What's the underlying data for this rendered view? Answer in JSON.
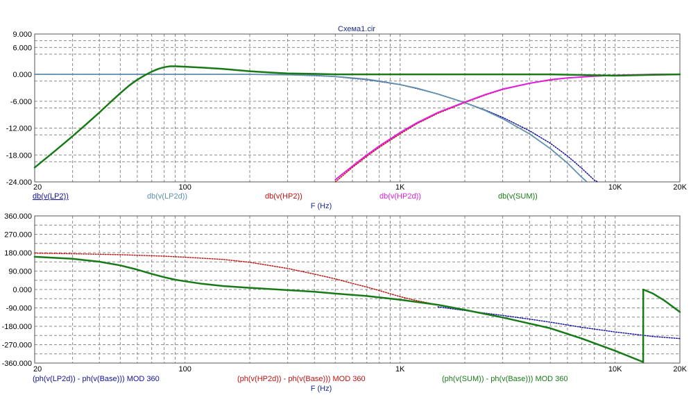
{
  "window": {
    "title": "Схема1.cir"
  },
  "chart_data": [
    {
      "type": "line",
      "xscale": "log",
      "xlim": [
        20,
        20000
      ],
      "ylim": [
        -24,
        9
      ],
      "grid": true,
      "xlabel": "F (Hz)",
      "ylabel": "",
      "x_tick_labels": [
        {
          "v": 20,
          "label": "20"
        },
        {
          "v": 100,
          "label": "100"
        },
        {
          "v": 1000,
          "label": "1K"
        },
        {
          "v": 10000,
          "label": "10K"
        },
        {
          "v": 20000,
          "label": "20K"
        }
      ],
      "y_tick_labels": [
        {
          "v": 9,
          "label": "9.000"
        },
        {
          "v": 6,
          "label": "6.000"
        },
        {
          "v": 0,
          "label": "0.000"
        },
        {
          "v": -6,
          "label": "-6.000"
        },
        {
          "v": -12,
          "label": "-12.000"
        },
        {
          "v": -18,
          "label": "-18.000"
        },
        {
          "v": -24,
          "label": "-24.000"
        }
      ],
      "series": [
        {
          "name": "db(v(LP2))",
          "color": "#1010a0",
          "style": "dotted",
          "width": 1.5,
          "points": [
            [
              20,
              0
            ],
            [
              100,
              0
            ],
            [
              200,
              0
            ],
            [
              300,
              -0.1
            ],
            [
              400,
              -0.3
            ],
            [
              500,
              -0.5
            ],
            [
              600,
              -0.9
            ],
            [
              700,
              -1.2
            ],
            [
              800,
              -1.6
            ],
            [
              1000,
              -2.3
            ],
            [
              1200,
              -3.2
            ],
            [
              1500,
              -4.4
            ],
            [
              2000,
              -6.3
            ],
            [
              2500,
              -8.0
            ],
            [
              3000,
              -9.6
            ],
            [
              4000,
              -12.6
            ],
            [
              5000,
              -15.4
            ],
            [
              6000,
              -18.2
            ],
            [
              7000,
              -21
            ],
            [
              8000,
              -23.6
            ],
            [
              8300,
              -24
            ]
          ]
        },
        {
          "name": "db(v(LP2d))",
          "color": "#5f8fab",
          "style": "solid",
          "width": 1.8,
          "points": [
            [
              20,
              0
            ],
            [
              100,
              0
            ],
            [
              200,
              0
            ],
            [
              300,
              -0.1
            ],
            [
              400,
              -0.2
            ],
            [
              500,
              -0.5
            ],
            [
              600,
              -0.8
            ],
            [
              700,
              -1.1
            ],
            [
              800,
              -1.5
            ],
            [
              1000,
              -2.3
            ],
            [
              1200,
              -3.1
            ],
            [
              1500,
              -4.4
            ],
            [
              2000,
              -6.3
            ],
            [
              2500,
              -8.1
            ],
            [
              3000,
              -9.9
            ],
            [
              4000,
              -13.3
            ],
            [
              5000,
              -16.6
            ],
            [
              6000,
              -19.8
            ],
            [
              7000,
              -23
            ],
            [
              7400,
              -24
            ]
          ]
        },
        {
          "name": "db(v(HP2))",
          "color": "#c01010",
          "style": "dotted",
          "width": 1.5,
          "points": [
            [
              500,
              -24
            ],
            [
              600,
              -20.8
            ],
            [
              700,
              -18.3
            ],
            [
              800,
              -16.3
            ],
            [
              1000,
              -13.3
            ],
            [
              1200,
              -11
            ],
            [
              1500,
              -8.7
            ],
            [
              2000,
              -6.3
            ],
            [
              2500,
              -4.6
            ],
            [
              3000,
              -3.4
            ],
            [
              4000,
              -2
            ],
            [
              5000,
              -1.3
            ],
            [
              6000,
              -0.8
            ],
            [
              8000,
              -0.4
            ],
            [
              10000,
              -0.2
            ],
            [
              15000,
              0
            ],
            [
              20000,
              0
            ]
          ]
        },
        {
          "name": "db(v(HP2d))",
          "color": "#e020e0",
          "style": "solid",
          "width": 2,
          "points": [
            [
              500,
              -23.5
            ],
            [
              600,
              -20.5
            ],
            [
              700,
              -18
            ],
            [
              800,
              -16
            ],
            [
              1000,
              -13
            ],
            [
              1200,
              -10.8
            ],
            [
              1500,
              -8.5
            ],
            [
              2000,
              -6.2
            ],
            [
              2500,
              -4.5
            ],
            [
              3000,
              -3.3
            ],
            [
              4000,
              -2
            ],
            [
              5000,
              -1.2
            ],
            [
              6000,
              -0.8
            ],
            [
              8000,
              -0.4
            ],
            [
              10000,
              -0.2
            ],
            [
              15000,
              0
            ],
            [
              20000,
              0
            ]
          ]
        },
        {
          "name": "db(v(SUM))",
          "color": "#177a17",
          "style": "solid",
          "width": 2.5,
          "points": [
            [
              20,
              -20.8
            ],
            [
              25,
              -17
            ],
            [
              30,
              -13.8
            ],
            [
              35,
              -11
            ],
            [
              40,
              -8.5
            ],
            [
              45,
              -6.2
            ],
            [
              50,
              -4.2
            ],
            [
              55,
              -2.5
            ],
            [
              60,
              -1.2
            ],
            [
              65,
              -0.2
            ],
            [
              70,
              0.6
            ],
            [
              75,
              1.2
            ],
            [
              80,
              1.6
            ],
            [
              85,
              1.8
            ],
            [
              90,
              1.8
            ],
            [
              100,
              1.7
            ],
            [
              120,
              1.5
            ],
            [
              150,
              1.2
            ],
            [
              200,
              0.7
            ],
            [
              250,
              0.4
            ],
            [
              300,
              0.2
            ],
            [
              400,
              0.1
            ],
            [
              500,
              0
            ],
            [
              1000,
              0
            ],
            [
              2000,
              0
            ],
            [
              5000,
              0
            ],
            [
              10000,
              -0.3
            ],
            [
              15000,
              -0.1
            ],
            [
              20000,
              0
            ]
          ]
        }
      ]
    },
    {
      "type": "line",
      "xscale": "log",
      "xlim": [
        20,
        20000
      ],
      "ylim": [
        -360,
        360
      ],
      "grid": true,
      "xlabel": "F (Hz)",
      "ylabel": "",
      "x_tick_labels": [
        {
          "v": 20,
          "label": "20"
        },
        {
          "v": 100,
          "label": "100"
        },
        {
          "v": 1000,
          "label": "1K"
        },
        {
          "v": 10000,
          "label": "10K"
        },
        {
          "v": 20000,
          "label": "20K"
        }
      ],
      "y_tick_labels": [
        {
          "v": 360,
          "label": "360.000"
        },
        {
          "v": 270,
          "label": "270.000"
        },
        {
          "v": 180,
          "label": "180.000"
        },
        {
          "v": 90,
          "label": "90.000"
        },
        {
          "v": 0,
          "label": "0.000"
        },
        {
          "v": -90,
          "label": "-90.000"
        },
        {
          "v": -180,
          "label": "-180.000"
        },
        {
          "v": -270,
          "label": "-270.000"
        },
        {
          "v": -360,
          "label": "-360.000"
        }
      ],
      "series": [
        {
          "name": "(ph(v(LP2d)) - ph(v(Base))) MOD 360",
          "color": "#1010a0",
          "style": "dotted",
          "width": 1.5,
          "points": [
            [
              1500,
              -85
            ],
            [
              2000,
              -103
            ],
            [
              3000,
              -127
            ],
            [
              4000,
              -145
            ],
            [
              5000,
              -160
            ],
            [
              7000,
              -185
            ],
            [
              10000,
              -208
            ],
            [
              15000,
              -230
            ],
            [
              20000,
              -240
            ]
          ]
        },
        {
          "name": "(ph(v(HP2d)) - ph(v(Base))) MOD 360",
          "color": "#c01010",
          "style": "dotted",
          "width": 1.5,
          "points": [
            [
              20,
              178
            ],
            [
              30,
              175
            ],
            [
              50,
              170
            ],
            [
              80,
              163
            ],
            [
              100,
              158
            ],
            [
              150,
              147
            ],
            [
              200,
              133
            ],
            [
              300,
              103
            ],
            [
              400,
              75
            ],
            [
              500,
              52
            ],
            [
              600,
              30
            ],
            [
              700,
              12
            ],
            [
              800,
              -5
            ],
            [
              1000,
              -35
            ],
            [
              1200,
              -55
            ],
            [
              1500,
              -75
            ],
            [
              2000,
              -100
            ]
          ]
        },
        {
          "name": "(ph(v(SUM)) - ph(v(Base))) MOD 360",
          "color": "#177a17",
          "style": "solid",
          "width": 2.5,
          "points": [
            [
              20,
              160
            ],
            [
              30,
              150
            ],
            [
              40,
              136
            ],
            [
              50,
              118
            ],
            [
              60,
              97
            ],
            [
              70,
              76
            ],
            [
              80,
              60
            ],
            [
              90,
              48
            ],
            [
              100,
              40
            ],
            [
              120,
              28
            ],
            [
              150,
              17
            ],
            [
              200,
              8
            ],
            [
              300,
              -3
            ],
            [
              400,
              -11
            ],
            [
              500,
              -20
            ],
            [
              700,
              -32
            ],
            [
              1000,
              -50
            ],
            [
              1500,
              -75
            ],
            [
              2000,
              -100
            ],
            [
              3000,
              -137
            ],
            [
              5000,
              -190
            ],
            [
              7000,
              -240
            ],
            [
              10000,
              -300
            ],
            [
              13500,
              -355
            ],
            [
              13510,
              0
            ],
            [
              15000,
              -20
            ],
            [
              17000,
              -55
            ],
            [
              20000,
              -110
            ]
          ]
        }
      ]
    }
  ]
}
